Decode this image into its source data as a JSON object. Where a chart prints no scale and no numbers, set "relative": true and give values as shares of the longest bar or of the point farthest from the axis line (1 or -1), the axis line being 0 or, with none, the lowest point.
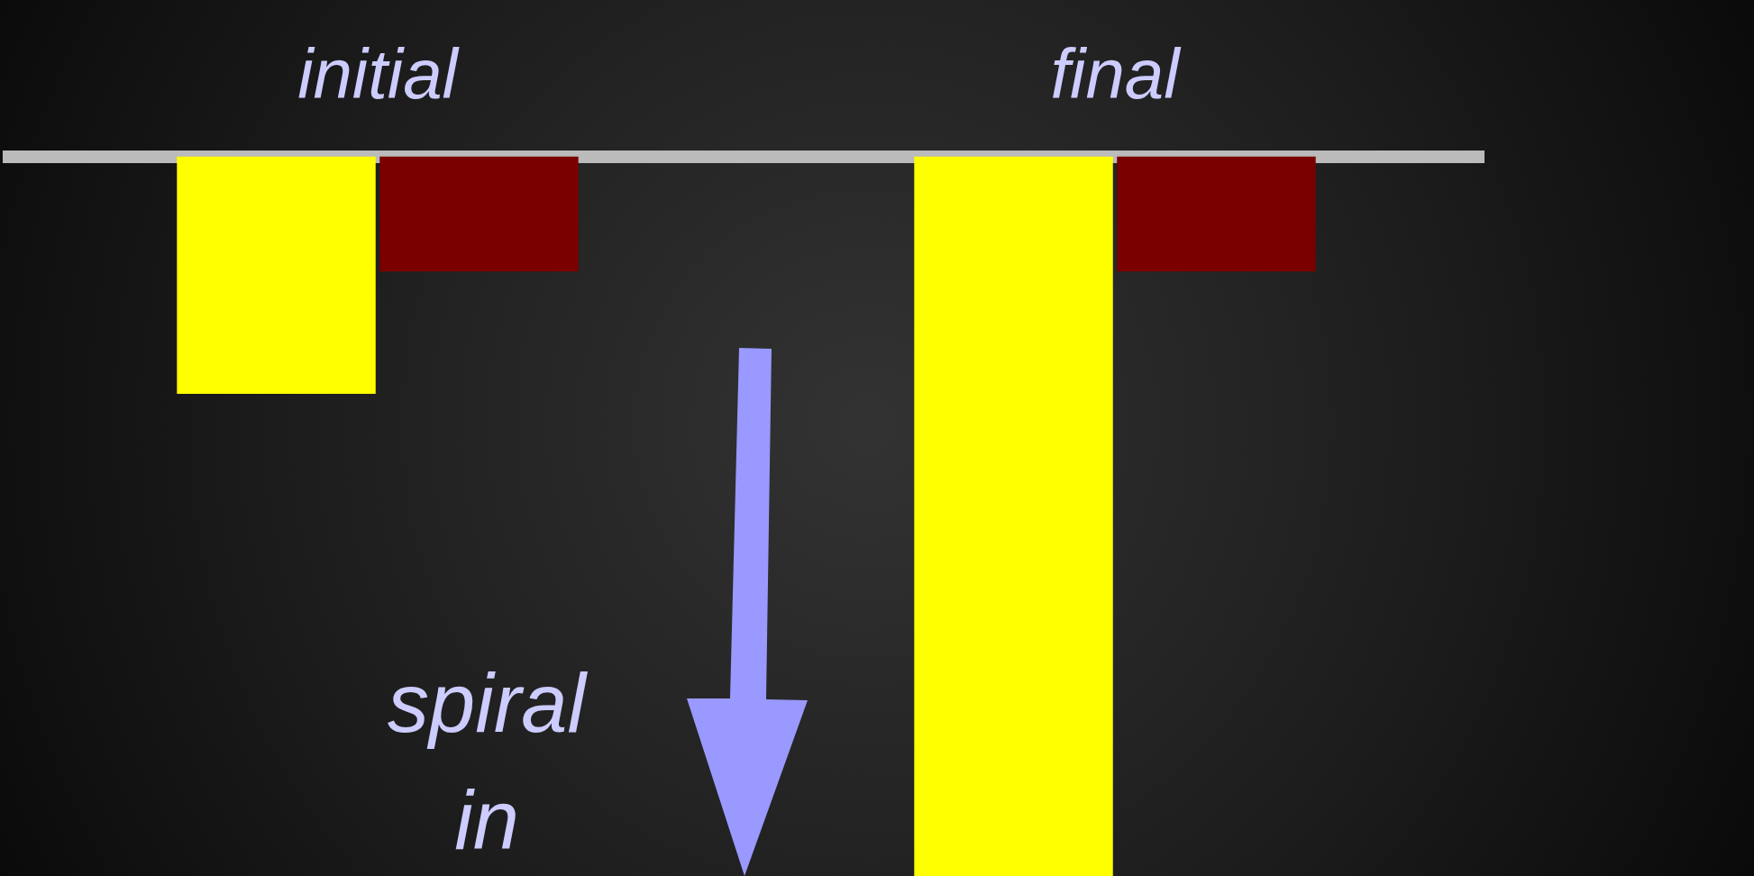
{
  "chart_data": {
    "type": "bar",
    "relative": true,
    "categories": [
      "initial",
      "final"
    ],
    "series": [
      {
        "color": "#ffff00",
        "values": [
          -0.33,
          -1
        ]
      },
      {
        "color": "#7a0000",
        "values": [
          -0.16,
          -0.16
        ]
      }
    ],
    "annotations": [
      "spiral\nin"
    ],
    "legend": false
  }
}
